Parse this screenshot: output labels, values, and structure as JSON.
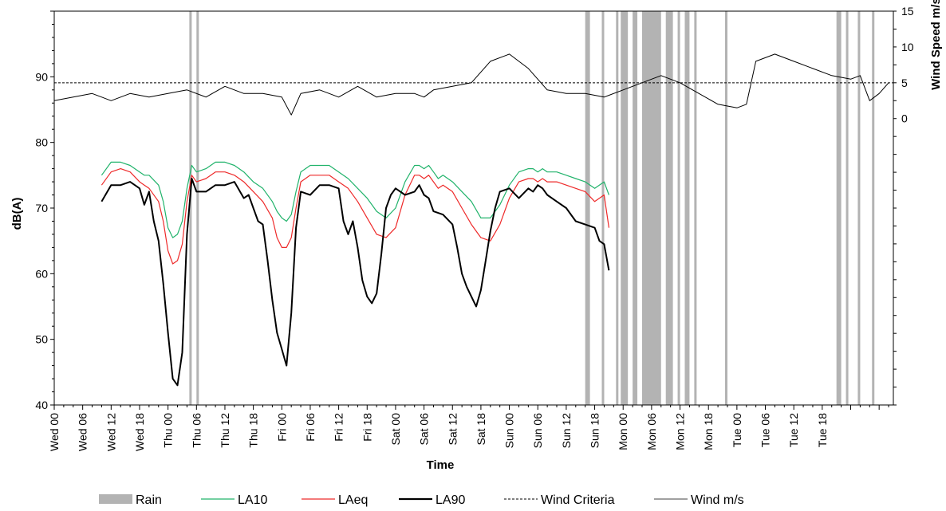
{
  "chart_data": {
    "type": "line",
    "title": "",
    "xlabel": "Time",
    "ylabel": "dB(A)",
    "y2label": "Wind Speed m/s",
    "ylim": [
      40,
      100
    ],
    "y2lim": [
      -40,
      15
    ],
    "yticks": [
      40,
      50,
      60,
      70,
      80,
      90
    ],
    "y2ticks": [
      0,
      5,
      10,
      15
    ],
    "xlim_hours": [
      0,
      177
    ],
    "xtick_labels": [
      "Wed 00",
      "Wed 06",
      "Wed 12",
      "Wed 18",
      "Thu 00",
      "Thu 06",
      "Thu 12",
      "Thu 18",
      "Fri 00",
      "Fri 06",
      "Fri 12",
      "Fri 18",
      "Sat 00",
      "Sat 06",
      "Sat 12",
      "Sat 18",
      "Sun 00",
      "Sun 06",
      "Sun 12",
      "Sun 18",
      "Mon 00",
      "Mon 06",
      "Mon 12",
      "Mon 18",
      "Tue 00",
      "Tue 06",
      "Tue 12",
      "Tue 18"
    ],
    "legend_position": "bottom",
    "grid": false,
    "rain_periods": [
      [
        28.5,
        29
      ],
      [
        30,
        30.5
      ],
      [
        112,
        113
      ],
      [
        115.5,
        116
      ],
      [
        118.5,
        119
      ],
      [
        119.5,
        121
      ],
      [
        122,
        123
      ],
      [
        124,
        128
      ],
      [
        129,
        130.5
      ],
      [
        131.5,
        132
      ],
      [
        133,
        134
      ],
      [
        135,
        135.5
      ],
      [
        141.5,
        142
      ],
      [
        165,
        166
      ],
      [
        167,
        167.5
      ],
      [
        169.5,
        170
      ],
      [
        172.5,
        173
      ]
    ],
    "wind_criteria": 5,
    "series": [
      {
        "name": "LA10",
        "color": "#21b36b",
        "x": [
          10,
          12,
          14,
          16,
          18,
          19,
          20,
          22,
          23,
          24,
          25,
          26,
          27,
          28,
          29,
          30,
          32,
          34,
          36,
          38,
          40,
          42,
          44,
          46,
          47,
          48,
          49,
          50,
          51,
          52,
          54,
          56,
          58,
          60,
          62,
          64,
          66,
          68,
          70,
          72,
          74,
          76,
          77,
          78,
          79,
          80,
          81,
          82,
          84,
          86,
          88,
          90,
          92,
          94,
          96,
          98,
          100,
          101,
          102,
          103,
          104,
          106,
          108,
          110,
          112,
          114,
          116,
          117
        ],
        "y": [
          75,
          77,
          77,
          76.5,
          75.5,
          75,
          75,
          73.5,
          71,
          67,
          65.5,
          66,
          68,
          73,
          76.5,
          75.5,
          76,
          77,
          77,
          76.5,
          75.5,
          74,
          73,
          71,
          69.5,
          68.5,
          68,
          69,
          72.5,
          75.5,
          76.5,
          76.5,
          76.5,
          75.5,
          74.5,
          73,
          71.5,
          69.5,
          68.5,
          70,
          74,
          76.5,
          76.5,
          76,
          76.5,
          75.5,
          74.5,
          75,
          74,
          72.5,
          71,
          68.5,
          68.5,
          70.5,
          73.5,
          75.5,
          76,
          76,
          75.5,
          76,
          75.5,
          75.5,
          75,
          74.5,
          74,
          73,
          74,
          72
        ]
      },
      {
        "name": "LAeq",
        "color": "#ee2a2a",
        "x": [
          10,
          12,
          14,
          16,
          18,
          19,
          20,
          22,
          23,
          24,
          25,
          26,
          27,
          28,
          29,
          30,
          32,
          34,
          36,
          38,
          40,
          42,
          44,
          46,
          47,
          48,
          49,
          50,
          51,
          52,
          54,
          56,
          58,
          60,
          62,
          64,
          66,
          68,
          70,
          72,
          74,
          76,
          77,
          78,
          79,
          80,
          81,
          82,
          84,
          86,
          88,
          90,
          92,
          94,
          96,
          98,
          100,
          101,
          102,
          103,
          104,
          106,
          108,
          110,
          112,
          114,
          116,
          117
        ],
        "y": [
          73.5,
          75.5,
          76,
          75.5,
          74,
          73.5,
          73,
          71,
          68,
          63.5,
          61.5,
          62,
          64.5,
          71,
          75,
          74,
          74.5,
          75.5,
          75.5,
          75,
          74,
          72.5,
          71,
          68.5,
          65.5,
          64,
          64,
          65.5,
          70,
          74,
          75,
          75,
          75,
          74,
          73,
          71,
          68.5,
          66,
          65.5,
          67,
          72,
          75,
          75,
          74.5,
          75,
          74,
          73,
          73.5,
          72.5,
          70,
          67.5,
          65.5,
          65,
          67.5,
          71.5,
          74,
          74.5,
          74.5,
          74,
          74.5,
          74,
          74,
          73.5,
          73,
          72.5,
          71,
          72,
          67
        ]
      },
      {
        "name": "LA90",
        "color": "#000000",
        "x": [
          10,
          12,
          14,
          16,
          18,
          19,
          20,
          21,
          22,
          23,
          24,
          25,
          26,
          27,
          28,
          29,
          30,
          32,
          34,
          36,
          38,
          40,
          41,
          42,
          43,
          44,
          45,
          46,
          47,
          48,
          49,
          50,
          51,
          52,
          54,
          56,
          58,
          60,
          61,
          62,
          63,
          64,
          65,
          66,
          67,
          68,
          69,
          70,
          71,
          72,
          74,
          76,
          77,
          78,
          79,
          80,
          82,
          84,
          85,
          86,
          87,
          88,
          89,
          90,
          91,
          92,
          93,
          94,
          96,
          98,
          100,
          101,
          102,
          103,
          104,
          106,
          108,
          110,
          112,
          114,
          115,
          116,
          117
        ],
        "y": [
          71,
          73.5,
          73.5,
          74,
          73,
          70.5,
          72.5,
          68,
          65,
          58.5,
          51,
          44,
          43,
          48,
          66,
          74.5,
          72.5,
          72.5,
          73.5,
          73.5,
          74,
          71.5,
          72,
          70,
          68,
          67.5,
          62,
          56,
          51,
          48.5,
          46,
          54,
          67,
          72.5,
          72,
          73.5,
          73.5,
          73,
          68,
          66,
          68,
          64,
          59,
          56.5,
          55.5,
          57,
          63,
          70,
          72,
          73,
          72,
          72.5,
          73.5,
          72,
          71.5,
          69.5,
          69,
          67.5,
          64,
          60,
          58,
          56.5,
          55,
          57.5,
          62,
          66.5,
          70,
          72.5,
          73,
          71.5,
          73,
          72.5,
          73.5,
          73,
          72,
          71,
          70,
          68,
          67.5,
          67,
          65,
          64.5,
          60.5
        ]
      },
      {
        "name": "Wind m/s",
        "color": "#000000",
        "x": [
          0,
          4,
          8,
          12,
          16,
          20,
          24,
          28,
          32,
          36,
          40,
          44,
          48,
          50,
          52,
          56,
          60,
          64,
          68,
          72,
          76,
          78,
          80,
          84,
          88,
          92,
          96,
          100,
          104,
          108,
          112,
          116,
          120,
          124,
          128,
          132,
          136,
          140,
          144,
          146,
          148,
          152,
          156,
          160,
          164,
          168,
          170,
          172,
          174,
          176
        ],
        "y": [
          2.5,
          3,
          3.5,
          2.5,
          3.5,
          3,
          3.5,
          4,
          3,
          4.5,
          3.5,
          3.5,
          3,
          0.5,
          3.5,
          4,
          3,
          4.5,
          3,
          3.5,
          3.5,
          3,
          4,
          4.5,
          5,
          8,
          9,
          7,
          4,
          3.5,
          3.5,
          3,
          4,
          5,
          6,
          5,
          3.5,
          2,
          1.5,
          2,
          8,
          9,
          8,
          7,
          6,
          5.5,
          6,
          2.5,
          3.5,
          5
        ]
      }
    ],
    "legend": [
      {
        "name": "Rain",
        "style": "bar"
      },
      {
        "name": "LA10",
        "style": "line"
      },
      {
        "name": "LAeq",
        "style": "line"
      },
      {
        "name": "LA90",
        "style": "line-thick"
      },
      {
        "name": "Wind Criteria",
        "style": "dashed"
      },
      {
        "name": "Wind m/s",
        "style": "line-thin"
      }
    ]
  },
  "colors": {
    "rain": "#b3b3b3",
    "axis": "#000000"
  }
}
